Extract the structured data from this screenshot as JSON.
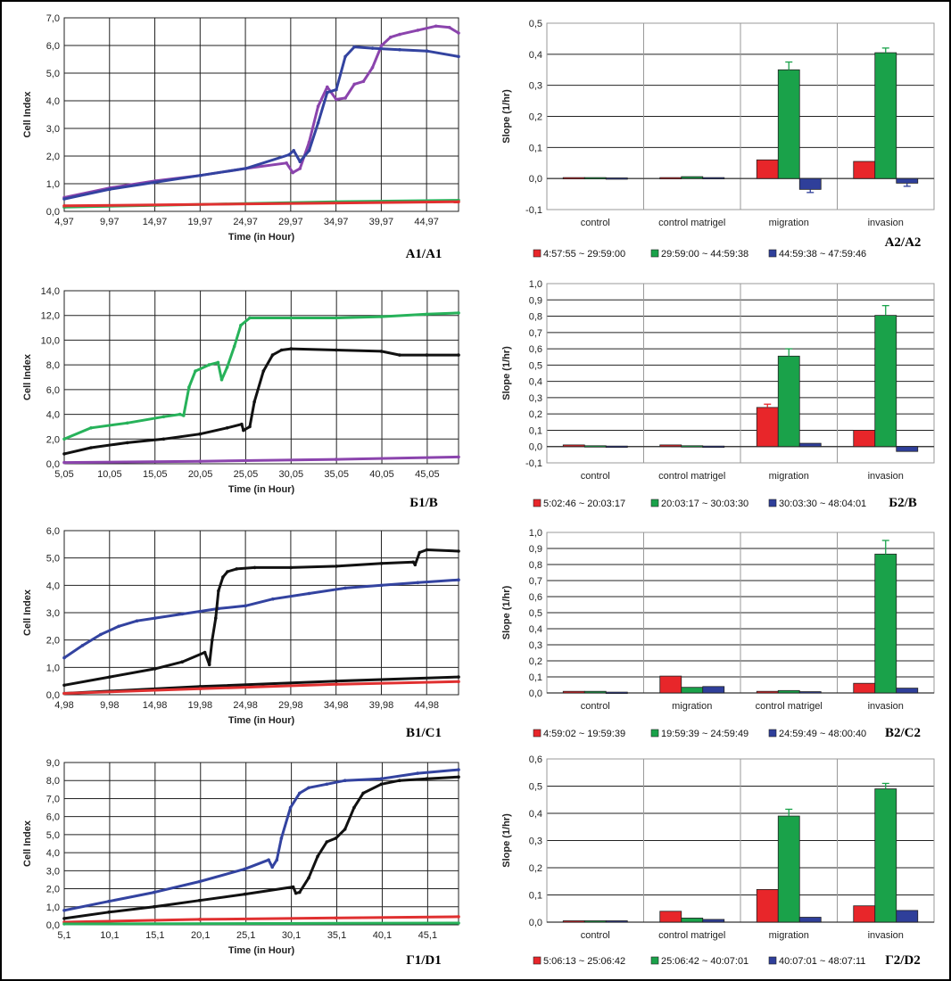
{
  "figure": {
    "background": "#ffffff",
    "colors": {
      "red": "#e8262a",
      "green": "#1aa24a",
      "blue": "#2f3f9a",
      "purple": "#8a3fa8",
      "black": "#111111",
      "grid": "#111111",
      "line_green": "#27b25a",
      "line_blue": "#3343a0",
      "line_purple": "#8b44ad",
      "line_red": "#e03030"
    }
  },
  "chart_data": [
    {
      "id": "A1",
      "type": "line",
      "label": "A1/A1",
      "xlabel": "Time (in Hour)",
      "ylabel": "Cell Index",
      "xlim": [
        4.97,
        48.5
      ],
      "ylim": [
        0,
        7
      ],
      "x_ticks": [
        4.97,
        9.97,
        14.97,
        19.97,
        24.97,
        29.97,
        34.97,
        39.97,
        44.97
      ],
      "x_tick_labels": [
        "4,97",
        "9,97",
        "14,97",
        "19,97",
        "24,97",
        "29,97",
        "34,97",
        "39,97",
        "44,97"
      ],
      "y_ticks": [
        0,
        1,
        2,
        3,
        4,
        5,
        6,
        7
      ],
      "y_tick_labels": [
        "0,0",
        "1,0",
        "2,0",
        "3,0",
        "4,0",
        "5,0",
        "6,0",
        "7,0"
      ],
      "series": [
        {
          "name": "purple",
          "color": "purple",
          "x": [
            4.97,
            10,
            15,
            20,
            25,
            29.5,
            30.2,
            31,
            32,
            33,
            34,
            35,
            36,
            37,
            38,
            39,
            40,
            41,
            42,
            44,
            46,
            47.5,
            48.5
          ],
          "y": [
            0.5,
            0.85,
            1.1,
            1.3,
            1.55,
            1.75,
            1.4,
            1.55,
            2.5,
            3.8,
            4.5,
            4.05,
            4.1,
            4.6,
            4.7,
            5.2,
            6.0,
            6.3,
            6.4,
            6.55,
            6.7,
            6.65,
            6.45
          ]
        },
        {
          "name": "blue",
          "color": "blue",
          "x": [
            4.97,
            10,
            15,
            20,
            25,
            29.8,
            30.3,
            31,
            32,
            33,
            34,
            35,
            36,
            37,
            39,
            42,
            45,
            48.5
          ],
          "y": [
            0.45,
            0.8,
            1.05,
            1.3,
            1.55,
            2.05,
            2.2,
            1.8,
            2.2,
            3.2,
            4.3,
            4.4,
            5.6,
            5.95,
            5.9,
            5.85,
            5.8,
            5.6
          ]
        },
        {
          "name": "green",
          "color": "green",
          "x": [
            4.97,
            15,
            25,
            35,
            48.5
          ],
          "y": [
            0.15,
            0.22,
            0.28,
            0.35,
            0.4
          ]
        },
        {
          "name": "red",
          "color": "red",
          "x": [
            4.97,
            48.5
          ],
          "y": [
            0.2,
            0.35
          ]
        }
      ]
    },
    {
      "id": "A2",
      "type": "bar",
      "label": "A2/A2",
      "ylabel": "Slope (1/hr)",
      "ylim": [
        -0.1,
        0.5
      ],
      "y_ticks": [
        -0.1,
        0,
        0.1,
        0.2,
        0.3,
        0.4,
        0.5
      ],
      "y_tick_labels": [
        "-0,1",
        "0,0",
        "0,1",
        "0,2",
        "0,3",
        "0,4",
        "0,5"
      ],
      "categories": [
        "control",
        "control matrigel",
        "migration",
        "invasion"
      ],
      "series": [
        {
          "name": "4:57:55 ~ 29:59:00",
          "color": "red",
          "values": [
            0.003,
            0.003,
            0.06,
            0.055
          ],
          "errors": [
            0,
            0,
            0,
            0
          ]
        },
        {
          "name": "29:59:00 ~ 44:59:38",
          "color": "green",
          "values": [
            0.003,
            0.006,
            0.35,
            0.405
          ],
          "errors": [
            0,
            0,
            0.025,
            0.015
          ]
        },
        {
          "name": "44:59:38 ~ 47:59:46",
          "color": "blue",
          "values": [
            0.002,
            0.003,
            -0.035,
            -0.015
          ],
          "errors": [
            0,
            0,
            0.01,
            0.01
          ]
        }
      ]
    },
    {
      "id": "B1",
      "type": "line",
      "label": "Б1/B",
      "xlabel": "Time (in Hour)",
      "ylabel": "Cell Index",
      "xlim": [
        5.05,
        48.5
      ],
      "ylim": [
        0,
        14
      ],
      "x_ticks": [
        5.05,
        10.05,
        15.05,
        20.05,
        25.05,
        30.05,
        35.05,
        40.05,
        45.05
      ],
      "x_tick_labels": [
        "5,05",
        "10,05",
        "15,05",
        "20,05",
        "25,05",
        "30,05",
        "35,05",
        "40,05",
        "45,05"
      ],
      "y_ticks": [
        0,
        2,
        4,
        6,
        8,
        10,
        12,
        14
      ],
      "y_tick_labels": [
        "0,0",
        "2,0",
        "4,0",
        "6,0",
        "8,0",
        "10,0",
        "12,0",
        "14,0"
      ],
      "series": [
        {
          "name": "green",
          "color": "green",
          "x": [
            5.05,
            8,
            12,
            16,
            17.8,
            18.2,
            18.8,
            19.5,
            21,
            22,
            22.4,
            23,
            23.8,
            24.5,
            25.5,
            30,
            35,
            40,
            45,
            48.5
          ],
          "y": [
            2.0,
            2.9,
            3.3,
            3.8,
            4.0,
            3.9,
            6.2,
            7.5,
            8.0,
            8.2,
            6.8,
            7.8,
            9.5,
            11.2,
            11.8,
            11.8,
            11.8,
            11.9,
            12.1,
            12.2
          ]
        },
        {
          "name": "black",
          "color": "black",
          "x": [
            5.05,
            8,
            12,
            16,
            20,
            23,
            24.6,
            24.8,
            25.5,
            26,
            27,
            28,
            29,
            30.05,
            35,
            40,
            42,
            45,
            48.5
          ],
          "y": [
            0.8,
            1.3,
            1.7,
            2.0,
            2.4,
            2.9,
            3.2,
            2.7,
            3.0,
            5.0,
            7.5,
            8.8,
            9.2,
            9.3,
            9.2,
            9.1,
            8.8,
            8.8,
            8.8
          ]
        },
        {
          "name": "purple",
          "color": "purple",
          "x": [
            5.05,
            20,
            35,
            48.5
          ],
          "y": [
            0.1,
            0.2,
            0.35,
            0.55
          ]
        }
      ]
    },
    {
      "id": "B2",
      "type": "bar",
      "label": "Б2/B",
      "ylabel": "Slope (1/hr)",
      "ylim": [
        -0.1,
        1.0
      ],
      "y_ticks": [
        -0.1,
        0,
        0.1,
        0.2,
        0.3,
        0.4,
        0.5,
        0.6,
        0.7,
        0.8,
        0.9,
        1.0
      ],
      "y_tick_labels": [
        "-0,1",
        "0,0",
        "0,1",
        "0,2",
        "0,3",
        "0,4",
        "0,5",
        "0,6",
        "0,7",
        "0,8",
        "0,9",
        "1,0"
      ],
      "categories": [
        "control",
        "control matrigel",
        "migration",
        "invasion"
      ],
      "series": [
        {
          "name": "5:02:46 ~ 20:03:17",
          "color": "red",
          "values": [
            0.01,
            0.01,
            0.24,
            0.1
          ],
          "errors": [
            0,
            0,
            0.02,
            0
          ]
        },
        {
          "name": "20:03:17 ~ 30:03:30",
          "color": "green",
          "values": [
            0.005,
            0.005,
            0.555,
            0.805
          ],
          "errors": [
            0,
            0,
            0.045,
            0.06
          ]
        },
        {
          "name": "30:03:30 ~ 48:04:01",
          "color": "blue",
          "values": [
            0.003,
            0.003,
            0.02,
            -0.03
          ],
          "errors": [
            0,
            0,
            0,
            0
          ]
        }
      ]
    },
    {
      "id": "C1",
      "type": "line",
      "label": "B1/C1",
      "xlabel": "Time (in Hour)",
      "ylabel": "Cell Index",
      "xlim": [
        4.98,
        48.5
      ],
      "ylim": [
        0,
        6
      ],
      "x_ticks": [
        4.98,
        9.98,
        14.98,
        19.98,
        24.98,
        29.98,
        34.98,
        39.98,
        44.98
      ],
      "x_tick_labels": [
        "4,98",
        "9,98",
        "14,98",
        "19,98",
        "24,98",
        "29,98",
        "34,98",
        "39,98",
        "44,98"
      ],
      "y_ticks": [
        0,
        1,
        2,
        3,
        4,
        5,
        6
      ],
      "y_tick_labels": [
        "0,0",
        "1,0",
        "2,0",
        "3,0",
        "4,0",
        "5,0",
        "6,0"
      ],
      "series": [
        {
          "name": "blue",
          "color": "blue",
          "x": [
            4.98,
            7,
            9,
            11,
            13,
            15,
            18,
            20,
            22,
            25,
            28,
            32,
            36,
            40,
            44,
            48.5
          ],
          "y": [
            1.35,
            1.8,
            2.2,
            2.5,
            2.7,
            2.8,
            2.95,
            3.05,
            3.15,
            3.25,
            3.5,
            3.7,
            3.9,
            4.0,
            4.1,
            4.2
          ]
        },
        {
          "name": "black",
          "color": "black",
          "x": [
            4.98,
            10,
            15,
            18,
            20.5,
            21,
            21.3,
            21.7,
            22,
            22.5,
            23,
            24,
            26,
            30,
            35,
            40,
            43.5,
            43.7,
            44.2,
            45,
            48.5
          ],
          "y": [
            0.35,
            0.65,
            0.95,
            1.2,
            1.55,
            1.1,
            2.0,
            2.8,
            3.8,
            4.3,
            4.5,
            4.6,
            4.65,
            4.65,
            4.7,
            4.8,
            4.85,
            4.75,
            5.2,
            5.3,
            5.25
          ]
        },
        {
          "name": "black2",
          "color": "black",
          "x": [
            4.98,
            20,
            35,
            48.5
          ],
          "y": [
            0.05,
            0.3,
            0.5,
            0.65
          ]
        },
        {
          "name": "red",
          "color": "red",
          "x": [
            4.98,
            20,
            35,
            48.5
          ],
          "y": [
            0.05,
            0.22,
            0.38,
            0.48
          ]
        }
      ]
    },
    {
      "id": "C2",
      "type": "bar",
      "label": "B2/C2",
      "ylabel": "Slope (1/hr)",
      "ylim": [
        0,
        1.0
      ],
      "y_ticks": [
        0,
        0.1,
        0.2,
        0.3,
        0.4,
        0.5,
        0.6,
        0.7,
        0.8,
        0.9,
        1.0
      ],
      "y_tick_labels": [
        "0,0",
        "0,1",
        "0,2",
        "0,3",
        "0,4",
        "0,5",
        "0,6",
        "0,7",
        "0,8",
        "0,9",
        "1,0"
      ],
      "categories": [
        "control",
        "migration",
        "control matrigel",
        "invasion"
      ],
      "series": [
        {
          "name": "4:59:02 ~ 19:59:39",
          "color": "red",
          "values": [
            0.01,
            0.105,
            0.01,
            0.06
          ],
          "errors": [
            0,
            0,
            0,
            0
          ]
        },
        {
          "name": "19:59:39 ~ 24:59:49",
          "color": "green",
          "values": [
            0.01,
            0.035,
            0.015,
            0.865
          ],
          "errors": [
            0,
            0,
            0,
            0.085
          ]
        },
        {
          "name": "24:59:49 ~ 48:00:40",
          "color": "blue",
          "values": [
            0.005,
            0.04,
            0.008,
            0.03
          ],
          "errors": [
            0,
            0,
            0,
            0
          ]
        }
      ]
    },
    {
      "id": "D1",
      "type": "line",
      "label": "Г1/D1",
      "xlabel": "Time (in Hour)",
      "ylabel": "Cell Index",
      "xlim": [
        5.1,
        48.5
      ],
      "ylim": [
        0,
        9
      ],
      "x_ticks": [
        5.1,
        10.1,
        15.1,
        20.1,
        25.1,
        30.1,
        35.1,
        40.1,
        45.1
      ],
      "x_tick_labels": [
        "5,1",
        "10,1",
        "15,1",
        "20,1",
        "25,1",
        "30,1",
        "35,1",
        "40,1",
        "45,1"
      ],
      "y_ticks": [
        0,
        1,
        2,
        3,
        4,
        5,
        6,
        7,
        8,
        9
      ],
      "y_tick_labels": [
        "0,0",
        "1,0",
        "2,0",
        "3,0",
        "4,0",
        "5,0",
        "6,0",
        "7,0",
        "8,0",
        "9,0"
      ],
      "series": [
        {
          "name": "blue",
          "color": "blue",
          "x": [
            5.1,
            10,
            15,
            20,
            25,
            27.6,
            28,
            28.5,
            29,
            30,
            31,
            32,
            34,
            36,
            40,
            44,
            48.5
          ],
          "y": [
            0.8,
            1.3,
            1.8,
            2.4,
            3.1,
            3.6,
            3.2,
            3.6,
            4.8,
            6.5,
            7.3,
            7.6,
            7.8,
            8.0,
            8.1,
            8.4,
            8.6
          ]
        },
        {
          "name": "black",
          "color": "black",
          "x": [
            5.1,
            10,
            15,
            20,
            25,
            30.3,
            30.6,
            31,
            32,
            33,
            34,
            35,
            36,
            37,
            38,
            40,
            42,
            45,
            48.5
          ],
          "y": [
            0.35,
            0.7,
            1.0,
            1.35,
            1.7,
            2.1,
            1.75,
            1.8,
            2.6,
            3.8,
            4.6,
            4.8,
            5.3,
            6.5,
            7.3,
            7.8,
            8.0,
            8.1,
            8.2
          ]
        },
        {
          "name": "red",
          "color": "red",
          "x": [
            5.1,
            20,
            35,
            48.5
          ],
          "y": [
            0.15,
            0.3,
            0.38,
            0.45
          ]
        },
        {
          "name": "green",
          "color": "green",
          "x": [
            5.1,
            48.5
          ],
          "y": [
            0.05,
            0.1
          ]
        }
      ]
    },
    {
      "id": "D2",
      "type": "bar",
      "label": "Г2/D2",
      "ylabel": "Slope (1/hr)",
      "ylim": [
        0,
        0.6
      ],
      "y_ticks": [
        0,
        0.1,
        0.2,
        0.3,
        0.4,
        0.5,
        0.6
      ],
      "y_tick_labels": [
        "0,0",
        "0,1",
        "0,2",
        "0,3",
        "0,4",
        "0,5",
        "0,6"
      ],
      "categories": [
        "control",
        "control matrigel",
        "migration",
        "invasion"
      ],
      "series": [
        {
          "name": "5:06:13 ~ 25:06:42",
          "color": "red",
          "values": [
            0.005,
            0.04,
            0.12,
            0.06
          ],
          "errors": [
            0,
            0,
            0,
            0
          ]
        },
        {
          "name": "25:06:42 ~ 40:07:01",
          "color": "green",
          "values": [
            0.005,
            0.015,
            0.39,
            0.49
          ],
          "errors": [
            0,
            0,
            0.025,
            0.02
          ]
        },
        {
          "name": "40:07:01 ~ 48:07:11",
          "color": "blue",
          "values": [
            0.005,
            0.01,
            0.018,
            0.043
          ],
          "errors": [
            0,
            0,
            0,
            0
          ]
        }
      ]
    }
  ]
}
